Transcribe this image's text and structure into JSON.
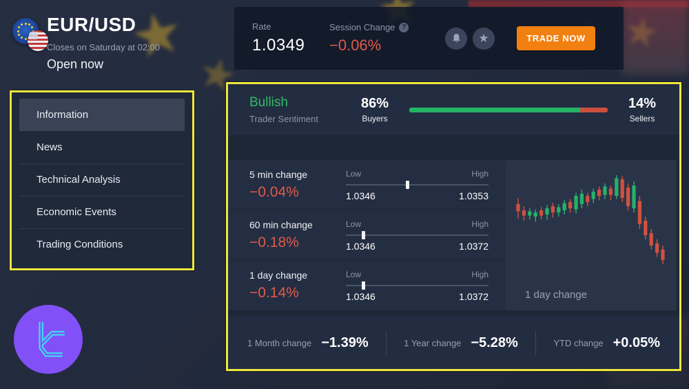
{
  "header": {
    "pair": "EUR/USD",
    "closes": "Closes on Saturday at 02:00",
    "status": "Open now"
  },
  "topbar": {
    "rate_label": "Rate",
    "rate_value": "1.0349",
    "session_label": "Session Change",
    "help_glyph": "?",
    "session_value": "−0.06%",
    "trade_button": "TRADE NOW"
  },
  "sidebar": {
    "items": [
      {
        "label": "Information",
        "active": true
      },
      {
        "label": "News",
        "active": false
      },
      {
        "label": "Technical Analysis",
        "active": false
      },
      {
        "label": "Economic Events",
        "active": false
      },
      {
        "label": "Trading Conditions",
        "active": false
      }
    ]
  },
  "sentiment": {
    "mood": "Bullish",
    "mood_label": "Trader Sentiment",
    "buyers_pct": "86%",
    "buyers_label": "Buyers",
    "sellers_pct": "14%",
    "sellers_label": "Sellers",
    "buyers_ratio": 86
  },
  "changes": [
    {
      "label": "5 min change",
      "value": "−0.04%",
      "low_label": "Low",
      "high_label": "High",
      "low": "1.0346",
      "high": "1.0353",
      "marker_pct": 43
    },
    {
      "label": "60 min change",
      "value": "−0.18%",
      "low_label": "Low",
      "high_label": "High",
      "low": "1.0346",
      "high": "1.0372",
      "marker_pct": 12
    },
    {
      "label": "1 day change",
      "value": "−0.14%",
      "low_label": "Low",
      "high_label": "High",
      "low": "1.0346",
      "high": "1.0372",
      "marker_pct": 12
    }
  ],
  "summary": [
    {
      "label": "1 Month change",
      "value": "−1.39%"
    },
    {
      "label": "1 Year change",
      "value": "−5.28%"
    },
    {
      "label": "YTD change",
      "value": "+0.05%"
    }
  ],
  "chart_data": {
    "type": "candlestick",
    "caption": "1 day change",
    "note": "normalized percent coordinates, 0 = chart top",
    "colors": {
      "up": "#25b16b",
      "down": "#cf5240"
    },
    "candles": [
      {
        "c": "r",
        "wt": 30,
        "bt": 36,
        "bb": 43,
        "wb": 50
      },
      {
        "c": "r",
        "wt": 38,
        "bt": 42,
        "bb": 47,
        "wb": 52
      },
      {
        "c": "g",
        "wt": 40,
        "bt": 43,
        "bb": 47,
        "wb": 51
      },
      {
        "c": "g",
        "wt": 41,
        "bt": 44,
        "bb": 48,
        "wb": 53
      },
      {
        "c": "r",
        "wt": 39,
        "bt": 42,
        "bb": 47,
        "wb": 51
      },
      {
        "c": "g",
        "wt": 37,
        "bt": 40,
        "bb": 46,
        "wb": 51
      },
      {
        "c": "r",
        "wt": 35,
        "bt": 38,
        "bb": 44,
        "wb": 49
      },
      {
        "c": "g",
        "wt": 36,
        "bt": 39,
        "bb": 44,
        "wb": 48
      },
      {
        "c": "g",
        "wt": 32,
        "bt": 35,
        "bb": 42,
        "wb": 46
      },
      {
        "c": "r",
        "wt": 31,
        "bt": 34,
        "bb": 40,
        "wb": 44
      },
      {
        "c": "g",
        "wt": 25,
        "bt": 28,
        "bb": 41,
        "wb": 45
      },
      {
        "c": "g",
        "wt": 22,
        "bt": 26,
        "bb": 36,
        "wb": 40
      },
      {
        "c": "r",
        "wt": 25,
        "bt": 28,
        "bb": 34,
        "wb": 38
      },
      {
        "c": "g",
        "wt": 21,
        "bt": 24,
        "bb": 31,
        "wb": 35
      },
      {
        "c": "r",
        "wt": 19,
        "bt": 22,
        "bb": 28,
        "wb": 32
      },
      {
        "c": "g",
        "wt": 16,
        "bt": 19,
        "bb": 27,
        "wb": 31
      },
      {
        "c": "r",
        "wt": 18,
        "bt": 21,
        "bb": 27,
        "wb": 32
      },
      {
        "c": "g",
        "wt": 8,
        "bt": 11,
        "bb": 28,
        "wb": 31
      },
      {
        "c": "r",
        "wt": 9,
        "bt": 12,
        "bb": 30,
        "wb": 34
      },
      {
        "c": "r",
        "wt": 16,
        "bt": 20,
        "bb": 38,
        "wb": 42
      },
      {
        "c": "g",
        "wt": 14,
        "bt": 18,
        "bb": 40,
        "wb": 44
      },
      {
        "c": "r",
        "wt": 28,
        "bt": 33,
        "bb": 55,
        "wb": 60
      },
      {
        "c": "r",
        "wt": 48,
        "bt": 52,
        "bb": 66,
        "wb": 70
      },
      {
        "c": "r",
        "wt": 60,
        "bt": 64,
        "bb": 76,
        "wb": 80
      },
      {
        "c": "r",
        "wt": 70,
        "bt": 74,
        "bb": 83,
        "wb": 87
      },
      {
        "c": "r",
        "wt": 76,
        "bt": 80,
        "bb": 90,
        "wb": 94
      }
    ]
  },
  "colors": {
    "accent_orange": "#f28011",
    "negative_red": "#e0594a",
    "bullish_green": "#2fbd63",
    "annotation_yellow": "#f2e73c",
    "brand_purple": "#8250f7",
    "brand_cyan": "#3fd9f6"
  }
}
